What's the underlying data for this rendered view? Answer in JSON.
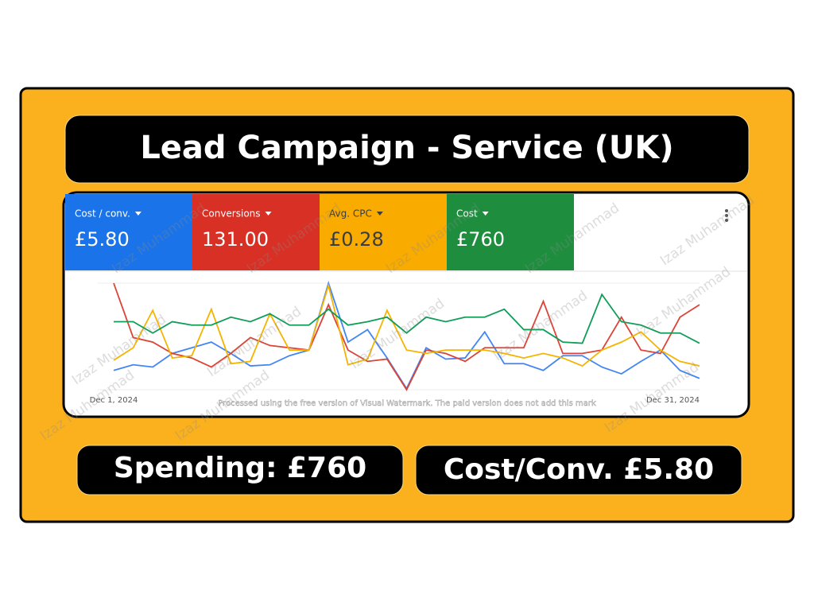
{
  "title": "Lead Campaign - Service (UK)",
  "metrics": [
    {
      "label": "Cost / conv.",
      "value": "£5.80"
    },
    {
      "label": "Conversions",
      "value": "131.00"
    },
    {
      "label": "Avg. CPC",
      "value": "£0.28"
    },
    {
      "label": "Cost",
      "value": "£760"
    }
  ],
  "chart_data": {
    "type": "line",
    "categories": [
      "Dec 1, 2024",
      null,
      null,
      null,
      null,
      null,
      null,
      null,
      null,
      null,
      null,
      null,
      null,
      null,
      null,
      null,
      null,
      null,
      null,
      null,
      null,
      null,
      null,
      null,
      null,
      null,
      null,
      null,
      null,
      null,
      "Dec 31, 2024"
    ],
    "series": [
      {
        "color": "#4285f4",
        "values": [
          21,
          26,
          24,
          36,
          41,
          46,
          36,
          25,
          26,
          34,
          39,
          98,
          46,
          57,
          32,
          5,
          41,
          31,
          32,
          55,
          27,
          27,
          21,
          34,
          34,
          24,
          18,
          29,
          39,
          21,
          14
        ]
      },
      {
        "color": "#db4437",
        "values": [
          98,
          50,
          46,
          36,
          32,
          24,
          36,
          50,
          43,
          41,
          39,
          79,
          39,
          29,
          31,
          4,
          39,
          36,
          29,
          41,
          41,
          41,
          82,
          36,
          36,
          39,
          68,
          39,
          36,
          68,
          79
        ]
      },
      {
        "color": "#f4b400",
        "values": [
          30,
          41,
          74,
          32,
          34,
          75,
          27,
          29,
          71,
          39,
          39,
          96,
          26,
          31,
          74,
          39,
          36,
          39,
          39,
          39,
          36,
          32,
          36,
          32,
          25,
          39,
          46,
          55,
          39,
          29,
          25
        ]
      },
      {
        "color": "#0f9d58",
        "values": [
          64,
          64,
          54,
          64,
          61,
          61,
          68,
          64,
          71,
          61,
          61,
          75,
          61,
          64,
          68,
          54,
          68,
          64,
          68,
          68,
          75,
          57,
          57,
          46,
          45,
          88,
          64,
          61,
          54,
          54,
          45
        ]
      }
    ]
  },
  "summary": [
    "Spending: £760",
    "Cost/Conv. £5.80"
  ],
  "watermark": "Izaz Muhammad",
  "notice": "Processed using the free version of Visual Watermark. The paid version does not add this mark"
}
